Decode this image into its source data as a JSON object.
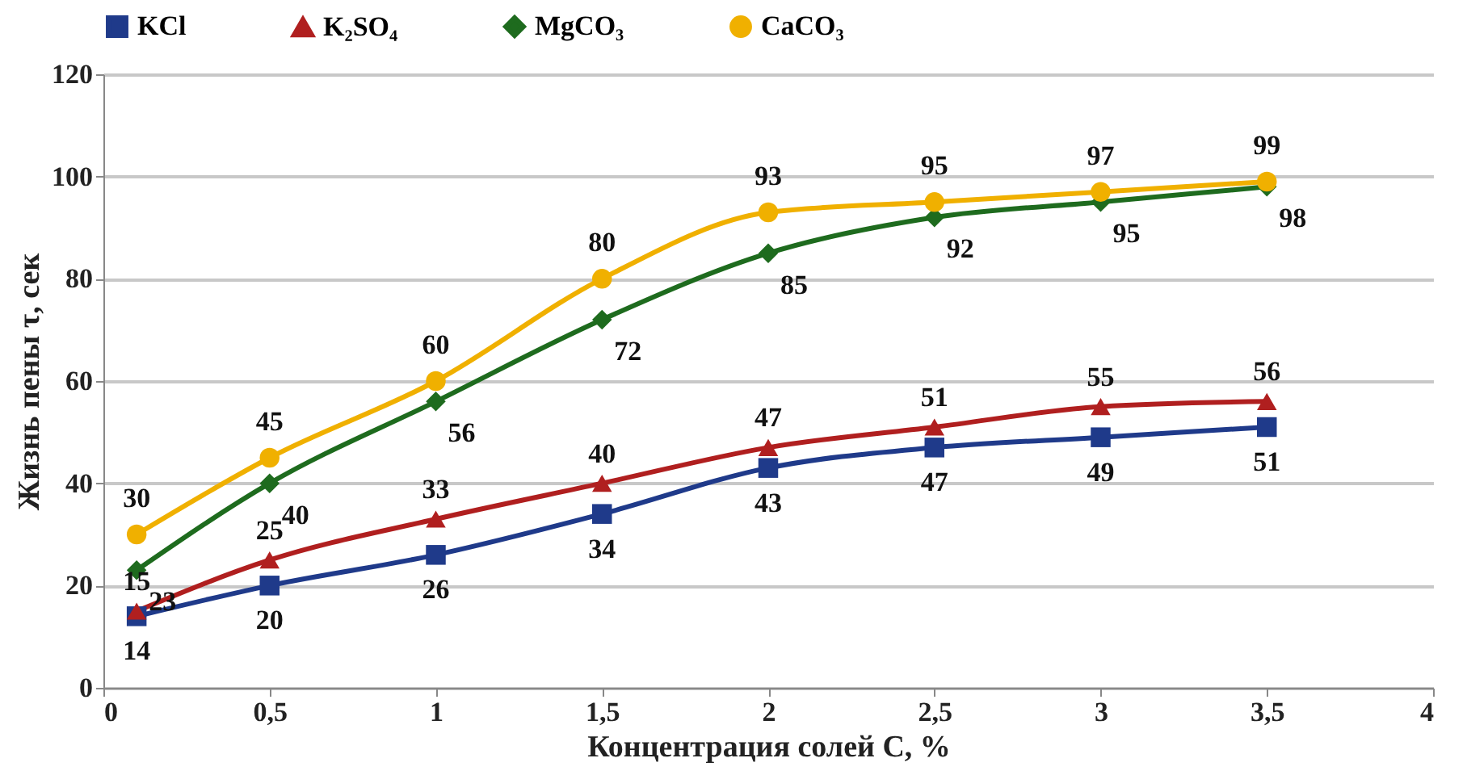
{
  "chart_data": {
    "type": "line",
    "xlabel": "Концентрация солей С, %",
    "ylabel": "Жизнь пены τ, сек",
    "x": [
      0.1,
      0.5,
      1,
      1.5,
      2,
      2.5,
      3,
      3.5
    ],
    "series": [
      {
        "name": "KCl",
        "color": "#1f3a8a",
        "marker": "square",
        "values": [
          14,
          20,
          26,
          34,
          43,
          47,
          49,
          51
        ]
      },
      {
        "name": "K₂SO₄",
        "color": "#b01f1f",
        "marker": "triangle",
        "values": [
          15,
          25,
          33,
          40,
          47,
          51,
          55,
          56
        ]
      },
      {
        "name": "MgCO₃",
        "color": "#1e6b1e",
        "marker": "diamond",
        "values": [
          23,
          40,
          56,
          72,
          85,
          92,
          95,
          98
        ]
      },
      {
        "name": "CaCO₃",
        "color": "#f0b000",
        "marker": "circle",
        "values": [
          30,
          45,
          60,
          80,
          93,
          95,
          97,
          99
        ]
      }
    ],
    "xlim": [
      0,
      4
    ],
    "xticks": [
      0,
      {
        "value": 0.5,
        "label": "0,5"
      },
      1,
      {
        "value": 1.5,
        "label": "1,5"
      },
      2,
      {
        "value": 2.5,
        "label": "2,5"
      },
      3,
      {
        "value": 3.5,
        "label": "3,5"
      },
      4
    ],
    "ylim": [
      0,
      120
    ],
    "yticks": [
      0,
      20,
      40,
      60,
      80,
      100,
      120
    ],
    "grid": "y",
    "legend": "top",
    "data_labels": true,
    "line_style": "solid"
  }
}
